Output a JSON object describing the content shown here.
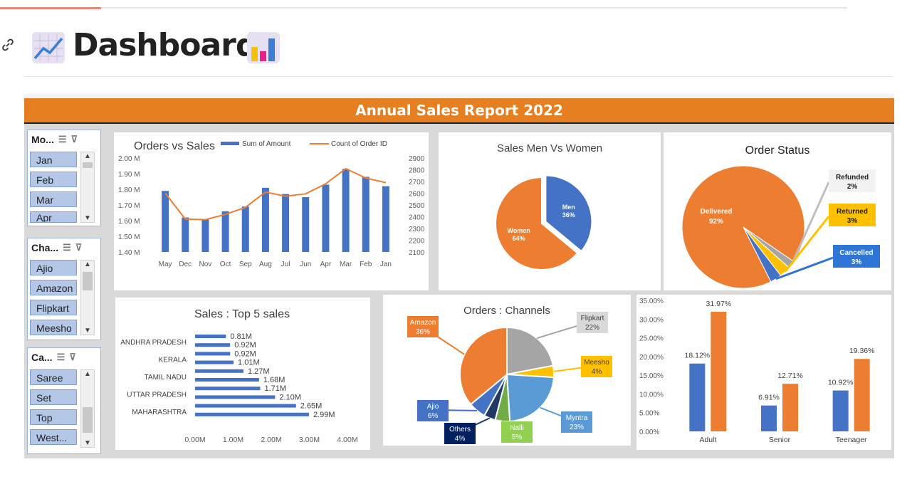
{
  "page": {
    "title": "Dashboard"
  },
  "dashboard": {
    "banner": "Annual Sales Report 2022",
    "slicers": [
      {
        "header": "Mo...",
        "items": [
          "Jan",
          "Feb",
          "Mar",
          "Apr"
        ]
      },
      {
        "header": "Cha...",
        "items": [
          "Ajio",
          "Amazon",
          "Flipkart",
          "Meesho"
        ]
      },
      {
        "header": "Ca...",
        "items": [
          "Saree",
          "Set",
          "Top",
          "West..."
        ]
      }
    ]
  },
  "colors": {
    "blue": "#4472c4",
    "orange": "#ed7d31",
    "gray": "#a5a5a5",
    "yellow": "#ffc000",
    "lightblue": "#5b9bd5",
    "green": "#70ad47",
    "navy": "#1f3864",
    "banner": "#e67e22"
  },
  "chart_data": [
    {
      "type": "bar",
      "title": "Orders vs Sales",
      "categories": [
        "May",
        "Dec",
        "Nov",
        "Oct",
        "Sep",
        "Aug",
        "Jul",
        "Jun",
        "Apr",
        "Mar",
        "Feb",
        "Jan"
      ],
      "series": [
        {
          "name": "Sum of Amount",
          "kind": "bar",
          "axis": "left",
          "values": [
            1.79,
            1.62,
            1.61,
            1.66,
            1.69,
            1.81,
            1.77,
            1.75,
            1.83,
            1.93,
            1.88,
            1.82
          ]
        },
        {
          "name": "Count of Order ID",
          "kind": "line",
          "axis": "right",
          "values": [
            2600,
            2380,
            2375,
            2420,
            2480,
            2610,
            2575,
            2595,
            2680,
            2810,
            2730,
            2690
          ]
        }
      ],
      "left_ticks": [
        "2.00 M",
        "1.90 M",
        "1.80 M",
        "1.70 M",
        "1.60 M",
        "1.50 M",
        "1.40 M"
      ],
      "ylim": [
        1.4,
        2.0
      ],
      "right_ticks": [
        "2900",
        "2800",
        "2700",
        "2600",
        "2500",
        "2400",
        "2300",
        "2200",
        "2100"
      ],
      "y2lim": [
        2100,
        2900
      ]
    },
    {
      "type": "pie",
      "title": "Sales Men Vs Women",
      "slices": [
        {
          "label": "Men",
          "value": 36,
          "text": "36%"
        },
        {
          "label": "Women",
          "value": 64,
          "text": "64%"
        }
      ]
    },
    {
      "type": "pie",
      "title": "Order Status",
      "slices": [
        {
          "label": "Delivered",
          "value": 92,
          "text": "92%"
        },
        {
          "label": "Refunded",
          "value": 2,
          "text": "2%"
        },
        {
          "label": "Returned",
          "value": 3,
          "text": "3%"
        },
        {
          "label": "Cancelled",
          "value": 3,
          "text": "3%"
        }
      ]
    },
    {
      "type": "bar",
      "orientation": "horizontal",
      "title": "Sales : Top 5 sales",
      "category_labels": [
        "ANDHRA PRADESH",
        "KERALA",
        "TAMIL NADU",
        "UTTAR PRADESH",
        "MAHARASHTRA"
      ],
      "values": [
        0.81,
        0.92,
        0.92,
        1.01,
        1.27,
        1.68,
        1.71,
        2.1,
        2.65,
        2.99
      ],
      "value_labels": [
        "0.81M",
        "0.92M",
        "0.92M",
        "1.01M",
        "1.27M",
        "1.68M",
        "1.71M",
        "2.10M",
        "2.65M",
        "2.99M"
      ],
      "x_ticks": [
        "0.00M",
        "1.00M",
        "2.00M",
        "3.00M",
        "4.00M"
      ],
      "xlim": [
        0,
        4
      ]
    },
    {
      "type": "pie",
      "title": "Orders : Channels",
      "slices": [
        {
          "label": "Flipkart",
          "value": 22,
          "text": "22%"
        },
        {
          "label": "Meesho",
          "value": 4,
          "text": "4%"
        },
        {
          "label": "Myntra",
          "value": 23,
          "text": "23%"
        },
        {
          "label": "Nalli",
          "value": 5,
          "text": "5%"
        },
        {
          "label": "Others",
          "value": 4,
          "text": "4%"
        },
        {
          "label": "Ajio",
          "value": 6,
          "text": "6%"
        },
        {
          "label": "Amazon",
          "value": 36,
          "text": "36%"
        }
      ]
    },
    {
      "type": "bar",
      "categories": [
        "Adult",
        "Senior",
        "Teenager"
      ],
      "series": [
        {
          "values": [
            18.12,
            6.91,
            10.92
          ],
          "labels": [
            "18.12%",
            "6.91%",
            "10.92%"
          ]
        },
        {
          "values": [
            31.97,
            12.71,
            19.36
          ],
          "labels": [
            "31.97%",
            "12.71%",
            "19.36%"
          ]
        }
      ],
      "y_ticks": [
        "35.00%",
        "30.00%",
        "25.00%",
        "20.00%",
        "15.00%",
        "10.00%",
        "5.00%",
        "0.00%"
      ],
      "ylim": [
        0,
        35
      ]
    }
  ]
}
